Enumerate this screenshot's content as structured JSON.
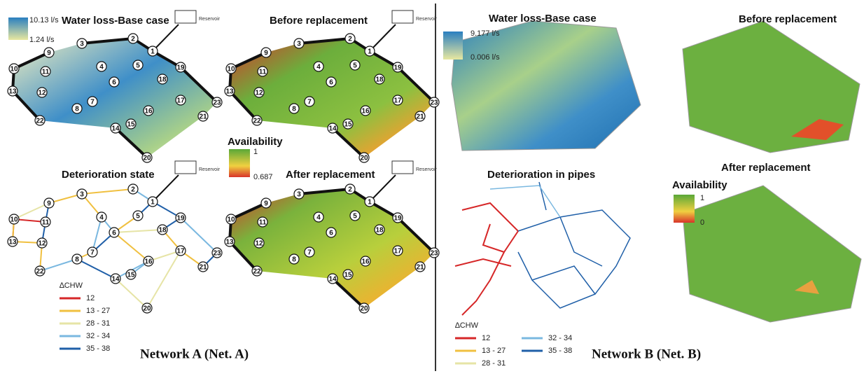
{
  "network_a": {
    "caption": "Network A (Net. A)",
    "panels": {
      "water_loss": {
        "title": "Water loss-Base case",
        "legend_max": "10.13 l/s",
        "legend_min": "1.24 l/s"
      },
      "before": {
        "title": "Before replacement"
      },
      "deterioration": {
        "title": "Deterioration state"
      },
      "after": {
        "title": "After replacement"
      }
    },
    "availability_legend": {
      "title": "Availability",
      "max": "1",
      "min": "0.687"
    },
    "reservoir": "Reservoir",
    "nodes": [
      "1",
      "2",
      "3",
      "4",
      "5",
      "6",
      "7",
      "8",
      "9",
      "10",
      "11",
      "12",
      "13",
      "14",
      "15",
      "16",
      "17",
      "18",
      "19",
      "20",
      "21",
      "22",
      "23"
    ],
    "chw_legend": {
      "title": "∆CHW",
      "items": [
        {
          "label": "12",
          "color": "#d62728"
        },
        {
          "label": "13 - 27",
          "color": "#f0c040"
        },
        {
          "label": "28 - 31",
          "color": "#e6e4a6"
        },
        {
          "label": "32 - 34",
          "color": "#7ab8e0"
        },
        {
          "label": "35 - 38",
          "color": "#1f5fa8"
        }
      ]
    }
  },
  "network_b": {
    "caption": "Network B (Net. B)",
    "panels": {
      "water_loss": {
        "title": "Water loss-Base case",
        "legend_max": "9.177 l/s",
        "legend_min": "0.006 l/s"
      },
      "before": {
        "title": "Before replacement"
      },
      "deterioration": {
        "title": "Deterioration in pipes"
      },
      "after": {
        "title": "After replacement"
      }
    },
    "availability_legend": {
      "title": "Availability",
      "max": "1",
      "min": "0"
    },
    "chw_legend": {
      "title": "∆CHW",
      "items": [
        {
          "label": "12",
          "color": "#d62728"
        },
        {
          "label": "13 - 27",
          "color": "#f0c040"
        },
        {
          "label": "28 - 31",
          "color": "#e6e4a6"
        },
        {
          "label": "32 - 34",
          "color": "#7ab8e0"
        },
        {
          "label": "35 - 38",
          "color": "#1f5fa8"
        }
      ]
    }
  }
}
